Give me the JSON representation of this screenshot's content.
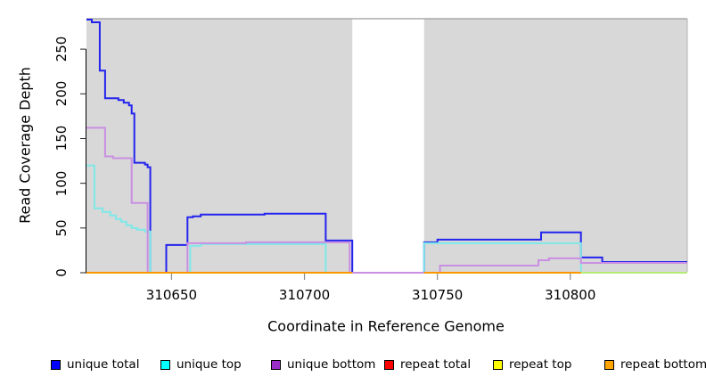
{
  "chart_data": {
    "type": "line",
    "subtype": "step-coverage",
    "title": "",
    "xlabel": "Coordinate in Reference Genome",
    "ylabel": "Read Coverage Depth",
    "xlim": [
      310618,
      310844
    ],
    "ylim": [
      0,
      284
    ],
    "x_ticks": [
      310650,
      310700,
      310750,
      310800
    ],
    "y_ticks": [
      0,
      50,
      100,
      150,
      200,
      250
    ],
    "grid": false,
    "legend_position": "bottom",
    "background_color": "#FFFFFF",
    "region_fill": "#D8D8D8",
    "region_border": "#9C9C9C",
    "shaded_regions": [
      {
        "name": "covered-left",
        "x0": 310618,
        "x1": 310718
      },
      {
        "name": "covered-right",
        "x0": 310745,
        "x1": 310844
      }
    ],
    "gap_region": {
      "x0": 310718,
      "x1": 310745
    },
    "series": [
      {
        "name": "unique total",
        "line_color": "#2323EE",
        "legend_color": "#0000FF",
        "segments": [
          [
            [
              310618,
              283
            ],
            [
              310620,
              280
            ],
            [
              310623,
              226
            ],
            [
              310625,
              195
            ],
            [
              310630,
              193
            ],
            [
              310632,
              190
            ],
            [
              310634,
              187
            ],
            [
              310635,
              178
            ],
            [
              310636,
              123
            ],
            [
              310640,
              121
            ],
            [
              310641,
              118
            ],
            [
              310642,
              0
            ],
            [
              310648,
              31
            ],
            [
              310656,
              62
            ],
            [
              310658,
              63
            ],
            [
              310661,
              65
            ],
            [
              310685,
              66
            ],
            [
              310708,
              36
            ],
            [
              310718,
              0
            ],
            [
              310745,
              34
            ],
            [
              310750,
              37
            ],
            [
              310789,
              45
            ],
            [
              310804,
              17
            ],
            [
              310812,
              12
            ],
            [
              310844,
              12
            ]
          ]
        ]
      },
      {
        "name": "unique top",
        "line_color": "#7FE8E8",
        "legend_color": "#00FFFF",
        "segments": [
          [
            [
              310618,
              120
            ],
            [
              310621,
              72
            ],
            [
              310624,
              68
            ],
            [
              310627,
              64
            ],
            [
              310629,
              60
            ],
            [
              310631,
              57
            ],
            [
              310633,
              53
            ],
            [
              310635,
              50
            ],
            [
              310637,
              48
            ],
            [
              310640,
              46
            ],
            [
              310642,
              0
            ],
            [
              310657,
              30
            ],
            [
              310661,
              32
            ],
            [
              310708,
              0
            ],
            [
              310745,
              33
            ],
            [
              310804,
              0
            ],
            [
              310844,
              0
            ]
          ]
        ]
      },
      {
        "name": "unique bottom",
        "line_color": "#C98FE2",
        "legend_color": "#9A2EC9",
        "segments": [
          [
            [
              310618,
              162
            ],
            [
              310625,
              130
            ],
            [
              310628,
              128
            ],
            [
              310635,
              78
            ],
            [
              310641,
              0
            ],
            [
              310656,
              33
            ],
            [
              310678,
              34
            ],
            [
              310717,
              0
            ],
            [
              310751,
              8
            ],
            [
              310788,
              14
            ],
            [
              310792,
              16
            ],
            [
              310804,
              11
            ],
            [
              310844,
              11
            ]
          ]
        ]
      },
      {
        "name": "repeat total",
        "line_color": "#E03030",
        "legend_color": "#FF0000",
        "segments": [
          [
            [
              310618,
              0
            ],
            [
              310718,
              0
            ]
          ],
          [
            [
              310745,
              0
            ],
            [
              310804,
              0
            ]
          ]
        ]
      },
      {
        "name": "repeat top",
        "line_color": "#F0F000",
        "legend_color": "#FFFF00",
        "segments": [
          [
            [
              310618,
              0
            ],
            [
              310718,
              0
            ]
          ],
          [
            [
              310745,
              0
            ],
            [
              310844,
              0
            ]
          ]
        ]
      },
      {
        "name": "repeat bottom",
        "line_color": "#FF9800",
        "legend_color": "#FFA500",
        "segments": [
          [
            [
              310618,
              0
            ],
            [
              310718,
              0
            ]
          ],
          [
            [
              310745,
              0
            ],
            [
              310804,
              0
            ]
          ]
        ]
      }
    ],
    "legend": [
      {
        "label": "unique total",
        "color": "#0000FF"
      },
      {
        "label": "unique top",
        "color": "#00FFFF"
      },
      {
        "label": "unique bottom",
        "color": "#9A2EC9"
      },
      {
        "label": "repeat total",
        "color": "#FF0000"
      },
      {
        "label": "repeat top",
        "color": "#FFFF00"
      },
      {
        "label": "repeat bottom",
        "color": "#FFA500"
      }
    ]
  }
}
